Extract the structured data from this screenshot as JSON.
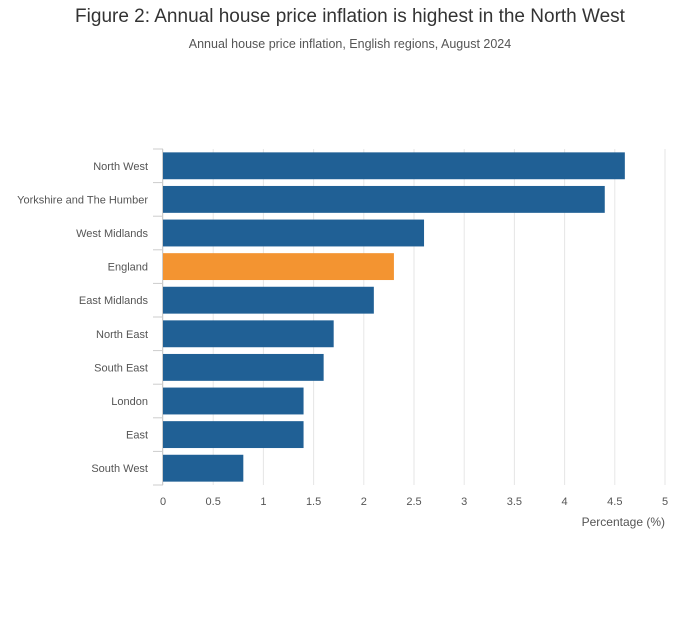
{
  "title": "Figure 2: Annual house price inflation is highest in the North West",
  "subtitle": "Annual house price inflation, English regions, August 2024",
  "chart_data": {
    "type": "bar",
    "orientation": "horizontal",
    "title": "Figure 2: Annual house price inflation is highest in the North West",
    "subtitle": "Annual house price inflation, English regions, August 2024",
    "xlabel": "Percentage (%)",
    "ylabel": "",
    "categories": [
      "North West",
      "Yorkshire and The Humber",
      "West Midlands",
      "England",
      "East Midlands",
      "North East",
      "South East",
      "London",
      "East",
      "South West"
    ],
    "values": [
      4.6,
      4.4,
      2.6,
      2.3,
      2.1,
      1.7,
      1.6,
      1.4,
      1.4,
      0.8
    ],
    "xlim": [
      0,
      5
    ],
    "xticks": [
      "0",
      "0.5",
      "1",
      "1.5",
      "2",
      "2.5",
      "3",
      "3.5",
      "4",
      "4.5",
      "5"
    ],
    "grid": "vertical",
    "colors": {
      "default": "#206095",
      "highlight": "#F39431",
      "highlight_category": "England"
    }
  }
}
